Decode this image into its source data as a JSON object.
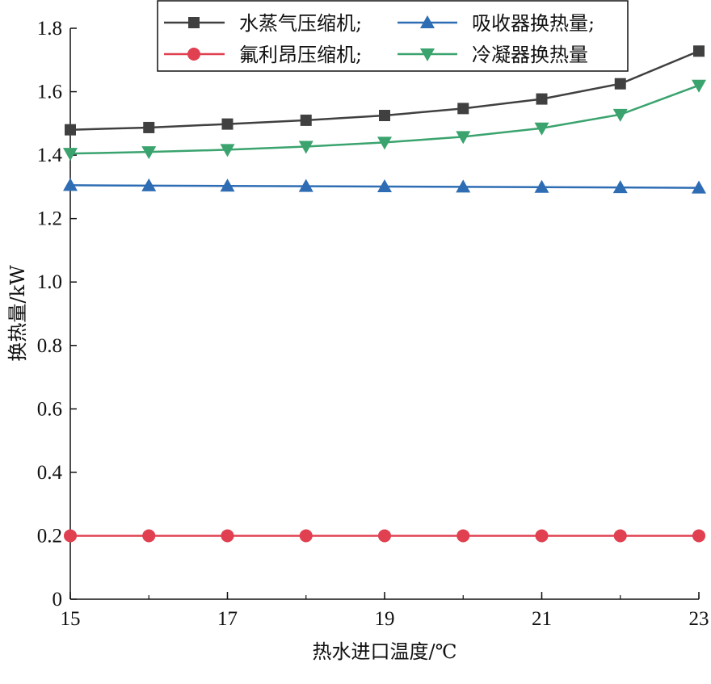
{
  "chart_data": {
    "type": "line",
    "xlabel": "热水进口温度/℃",
    "ylabel": "换热量/kW",
    "xlim": [
      15,
      23
    ],
    "ylim": [
      0,
      1.8
    ],
    "xticks": [
      "15",
      "17",
      "19",
      "21",
      "23"
    ],
    "yticks": [
      "0",
      "0.2",
      "0.4",
      "0.6",
      "0.8",
      "1.0",
      "1.2",
      "1.4",
      "1.6",
      "1.8"
    ],
    "x": [
      15,
      16,
      17,
      18,
      19,
      20,
      21,
      22,
      23
    ],
    "grid": false,
    "legend_position": "top",
    "series": [
      {
        "name": "水蒸气压缩机;",
        "color": "#404040",
        "marker": "square",
        "values": [
          1.48,
          1.487,
          1.498,
          1.51,
          1.525,
          1.547,
          1.577,
          1.625,
          1.728
        ]
      },
      {
        "name": "吸收器换热量;",
        "color": "#2e6db4",
        "marker": "triangle-up",
        "values": [
          1.305,
          1.304,
          1.303,
          1.302,
          1.301,
          1.3,
          1.299,
          1.298,
          1.297
        ]
      },
      {
        "name": "氟利昂压缩机;",
        "color": "#e04050",
        "marker": "circle",
        "values": [
          0.2,
          0.2,
          0.2,
          0.2,
          0.2,
          0.2,
          0.2,
          0.2,
          0.2
        ]
      },
      {
        "name": "冷凝器换热量",
        "color": "#3aa36e",
        "marker": "triangle-down",
        "values": [
          1.405,
          1.41,
          1.417,
          1.427,
          1.44,
          1.458,
          1.485,
          1.528,
          1.62
        ]
      }
    ]
  }
}
